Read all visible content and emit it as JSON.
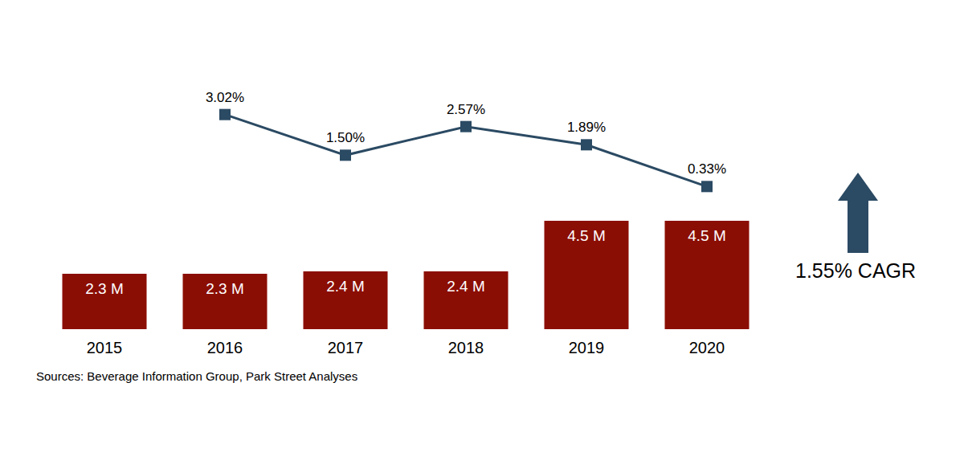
{
  "chart_data": {
    "type": "bar",
    "categories": [
      "2015",
      "2016",
      "2017",
      "2018",
      "2019",
      "2020"
    ],
    "series": [
      {
        "type": "bar",
        "color": "#8b0e04",
        "values": [
          2.3,
          2.3,
          2.4,
          2.4,
          4.5,
          4.5
        ],
        "value_labels": [
          "2.3 M",
          "2.3 M",
          "2.4 M",
          "2.4 M",
          "4.5 M",
          "4.5 M"
        ]
      },
      {
        "type": "line",
        "axis": "y2",
        "color": "#2b4a63",
        "marker": "square",
        "values": [
          null,
          3.02,
          1.5,
          2.57,
          1.89,
          0.33
        ],
        "value_labels": [
          null,
          "3.02%",
          "1.50%",
          "2.57%",
          "1.89%",
          "0.33%"
        ]
      }
    ],
    "ylim": [
      0,
      10
    ],
    "y2lim": [
      -5,
      4
    ],
    "data_labels": true,
    "tick_labels": "x",
    "grid": false,
    "annotations": [
      "1.55% CAGR",
      "Sources: Beverage Information Group, Park Street Analyses"
    ]
  }
}
